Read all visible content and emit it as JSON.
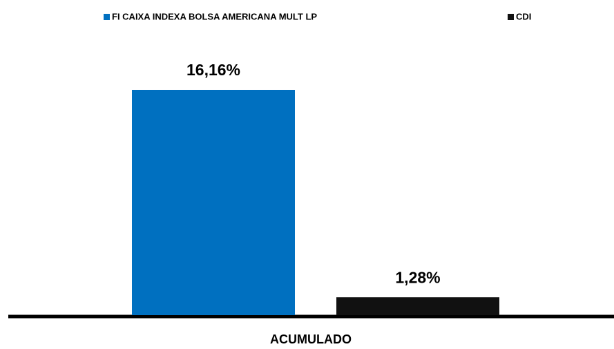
{
  "chart_data": {
    "type": "bar",
    "categories": [
      "ACUMULADO"
    ],
    "series": [
      {
        "name": "FI CAIXA INDEXA BOLSA AMERICANA MULT LP",
        "color": "#0070c0",
        "values": [
          16.16
        ],
        "value_labels": [
          "16,16%"
        ]
      },
      {
        "name": "CDI",
        "color": "#111111",
        "values": [
          1.28
        ],
        "value_labels": [
          "1,28%"
        ]
      }
    ],
    "legend": "top"
  }
}
